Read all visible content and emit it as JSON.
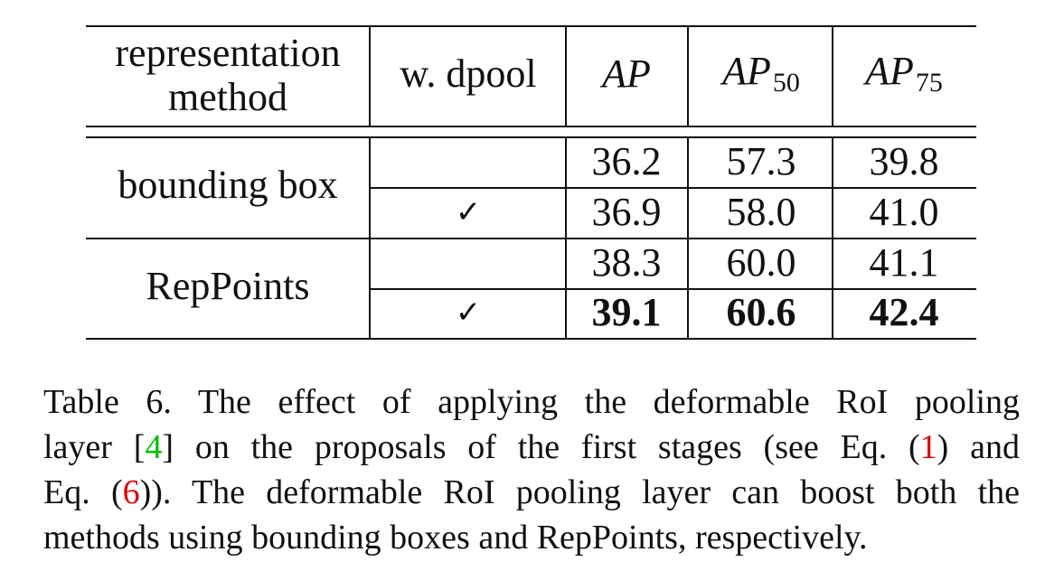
{
  "table": {
    "headers": {
      "method": "representation method",
      "dpool": "w. dpool",
      "ap": "AP",
      "ap50_base": "AP",
      "ap50_sub": "50",
      "ap75_base": "AP",
      "ap75_sub": "75"
    },
    "rows": [
      {
        "method": "bounding box",
        "dpool": "",
        "ap": "36.2",
        "ap50": "57.3",
        "ap75": "39.8"
      },
      {
        "method": "bounding box",
        "dpool": "✓",
        "ap": "36.9",
        "ap50": "58.0",
        "ap75": "41.0"
      },
      {
        "method": "RepPoints",
        "dpool": "",
        "ap": "38.3",
        "ap50": "60.0",
        "ap75": "41.1"
      },
      {
        "method": "RepPoints",
        "dpool": "✓",
        "ap": "39.1",
        "ap50": "60.6",
        "ap75": "42.4"
      }
    ],
    "method_groups": [
      "bounding box",
      "RepPoints"
    ]
  },
  "caption": {
    "l1": "Table 6. The effect of applying the deformable RoI pooling",
    "l2_a": "layer [",
    "l2_ref": "4",
    "l2_b": "] on the proposals of the first stages (see Eq. (",
    "l2_ref2": "1",
    "l2_c": ") and",
    "l3_a": "Eq. (",
    "l3_ref": "6",
    "l3_b": ")).  The deformable RoI pooling layer can boost both the",
    "l4": "methods using bounding boxes and RepPoints, respectively."
  }
}
